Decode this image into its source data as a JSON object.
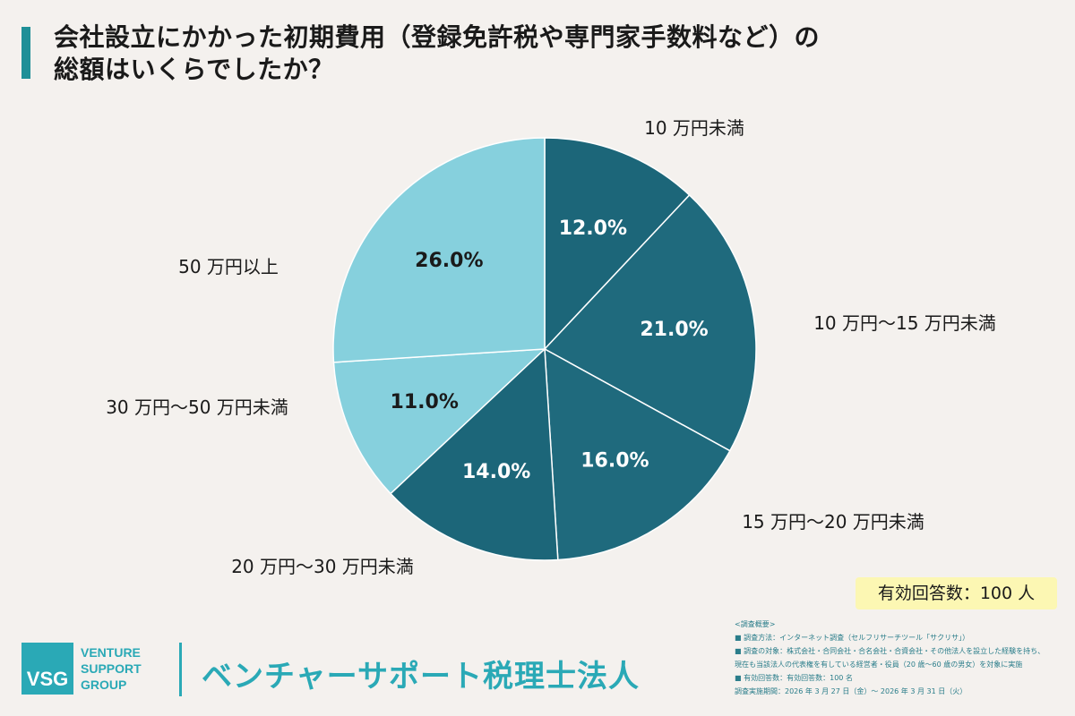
{
  "title": {
    "line1": "会社設立にかかった初期費用（登録免許税や専門家手数料など）の",
    "line2": "総額はいくらでしたか？"
  },
  "chart_data": {
    "type": "pie",
    "categories": [
      "10 万円未満",
      "10 万円〜15 万円未満",
      "15 万円〜20 万円未満",
      "20 万円〜30 万円未満",
      "30 万円〜50 万円未満",
      "50 万円以上"
    ],
    "values": [
      12.0,
      21.0,
      16.0,
      14.0,
      11.0,
      26.0
    ],
    "value_labels": [
      "12.0%",
      "21.0%",
      "16.0%",
      "14.0%",
      "11.0%",
      "26.0%"
    ],
    "colors": [
      "#1c6679",
      "#1f6a7d",
      "#1f6a7d",
      "#1c6679",
      "#86d0dd",
      "#86d0dd"
    ],
    "value_label_colors": [
      "#ffffff",
      "#ffffff",
      "#ffffff",
      "#ffffff",
      "#1a1a1a",
      "#1a1a1a"
    ],
    "start_angle": "12 o'clock",
    "direction": "clockwise"
  },
  "respondents": "有効回答数：100 人",
  "survey": {
    "heading": "<調査概要>",
    "lines": [
      "■ 調査方法：インターネット調査（セルフリサーチツール「サクリサ」）",
      "■ 調査の対象：株式会社・合同会社・合名会社・合資会社・その他法人を設立した経験を持ち、",
      "現在も当該法人の代表権を有している経営者・役員（20 歳〜60 歳の男女）を対象に実施",
      "■ 有効回答数：有効回答数：100 名",
      "調査実施期間：2026 年 3 月 27 日（金）〜 2026 年 3 月 31 日（火）"
    ]
  },
  "logo": {
    "mark": "VSG",
    "lines": [
      "VENTURE",
      "SUPPORT",
      "GROUP"
    ]
  },
  "company": "ベンチャーサポート税理士法人"
}
